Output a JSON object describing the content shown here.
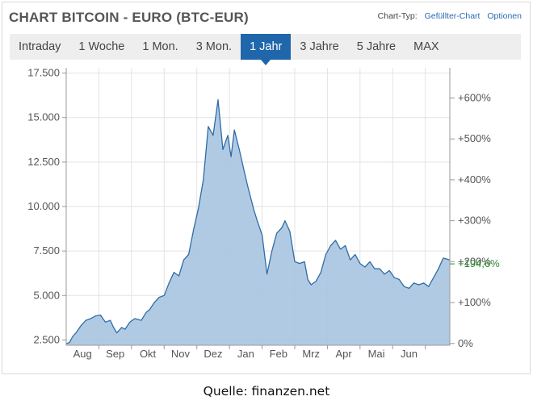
{
  "header": {
    "title": "CHART BITCOIN - EURO (BTC-EUR)",
    "chart_type_label": "Chart-Typ:",
    "chart_type_value": "Gefüllter-Chart",
    "options_label": "Optionen"
  },
  "tabs": [
    {
      "label": "Intraday",
      "active": false
    },
    {
      "label": "1 Woche",
      "active": false
    },
    {
      "label": "1 Mon.",
      "active": false
    },
    {
      "label": "3 Mon.",
      "active": false
    },
    {
      "label": "1 Jahr",
      "active": true
    },
    {
      "label": "3 Jahre",
      "active": false
    },
    {
      "label": "5 Jahre",
      "active": false
    },
    {
      "label": "MAX",
      "active": false
    }
  ],
  "source": "Quelle: finanzen.net",
  "colors": {
    "tab_active": "#1f66ab",
    "area_fill": "#a9c4e0",
    "line": "#2f6ca6",
    "current_label": "#2e8b2e"
  },
  "chart_data": {
    "type": "area",
    "title": "CHART BITCOIN - EURO (BTC-EUR)",
    "y_left": {
      "range": [
        2200,
        17800
      ],
      "ticks": [
        2500,
        5000,
        7500,
        10000,
        12500,
        15000,
        17500
      ],
      "tick_labels": [
        "2.500",
        "5.000",
        "7.500",
        "10.000",
        "12.500",
        "15.000",
        "17.500"
      ]
    },
    "y_right": {
      "ticks": [
        0,
        100,
        200,
        300,
        400,
        500,
        600
      ],
      "tick_labels": [
        "0%",
        "+100%",
        "+200%",
        "+300%",
        "+400%",
        "+500%",
        "+600%"
      ]
    },
    "current_change_label": "+194,6%",
    "current_change_value": 194.6,
    "x_labels": [
      "Aug",
      "Sep",
      "Okt",
      "Nov",
      "Dez",
      "Jan",
      "Feb",
      "Mrz",
      "Apr",
      "Mai",
      "Jun"
    ],
    "x_label_months": [
      1,
      2,
      3,
      4,
      5,
      6,
      7,
      8,
      9,
      10,
      11
    ],
    "x_domain_months": [
      0,
      11.75
    ],
    "grid": true,
    "series": [
      {
        "x": [
          0,
          0.1,
          0.2,
          0.3,
          0.45,
          0.6,
          0.75,
          0.9,
          1.05,
          1.2,
          1.35,
          1.45,
          1.55,
          1.7,
          1.8,
          1.95,
          2.1,
          2.3,
          2.45,
          2.55,
          2.7,
          2.85,
          3.0,
          3.15,
          3.3,
          3.45,
          3.6,
          3.75,
          3.9,
          4.05,
          4.2,
          4.35,
          4.5,
          4.65,
          4.8,
          4.95,
          5.05,
          5.15,
          5.3,
          5.45,
          5.55,
          5.65,
          5.75,
          5.85,
          6.0,
          6.15,
          6.3,
          6.45,
          6.6,
          6.7,
          6.85,
          7.0,
          7.15,
          7.3,
          7.4,
          7.5,
          7.65,
          7.8,
          7.95,
          8.1,
          8.25,
          8.4,
          8.55,
          8.7,
          8.85,
          9.0,
          9.15,
          9.3,
          9.45,
          9.6,
          9.75,
          9.9,
          10.05,
          10.2,
          10.35,
          10.5,
          10.65,
          10.8,
          10.95,
          11.1,
          11.25,
          11.4,
          11.55,
          11.75
        ],
        "y": [
          2300,
          2350,
          2700,
          2900,
          3300,
          3600,
          3700,
          3850,
          3900,
          3500,
          3600,
          3200,
          2900,
          3200,
          3100,
          3500,
          3700,
          3600,
          4050,
          4200,
          4600,
          4900,
          5000,
          5700,
          6300,
          6100,
          7000,
          7300,
          8700,
          9900,
          11500,
          14500,
          14000,
          16000,
          13200,
          14000,
          12800,
          14300,
          13200,
          12000,
          11200,
          10500,
          9800,
          9200,
          8400,
          6200,
          7500,
          8500,
          8800,
          9200,
          8600,
          6900,
          6800,
          6900,
          5900,
          5600,
          5800,
          6300,
          7300,
          7800,
          8100,
          7600,
          7800,
          7000,
          7300,
          6800,
          6600,
          6900,
          6500,
          6500,
          6200,
          6400,
          6000,
          5900,
          5500,
          5400,
          5700,
          5600,
          5700,
          5500,
          6000,
          6500,
          7100,
          7000
        ]
      }
    ]
  }
}
